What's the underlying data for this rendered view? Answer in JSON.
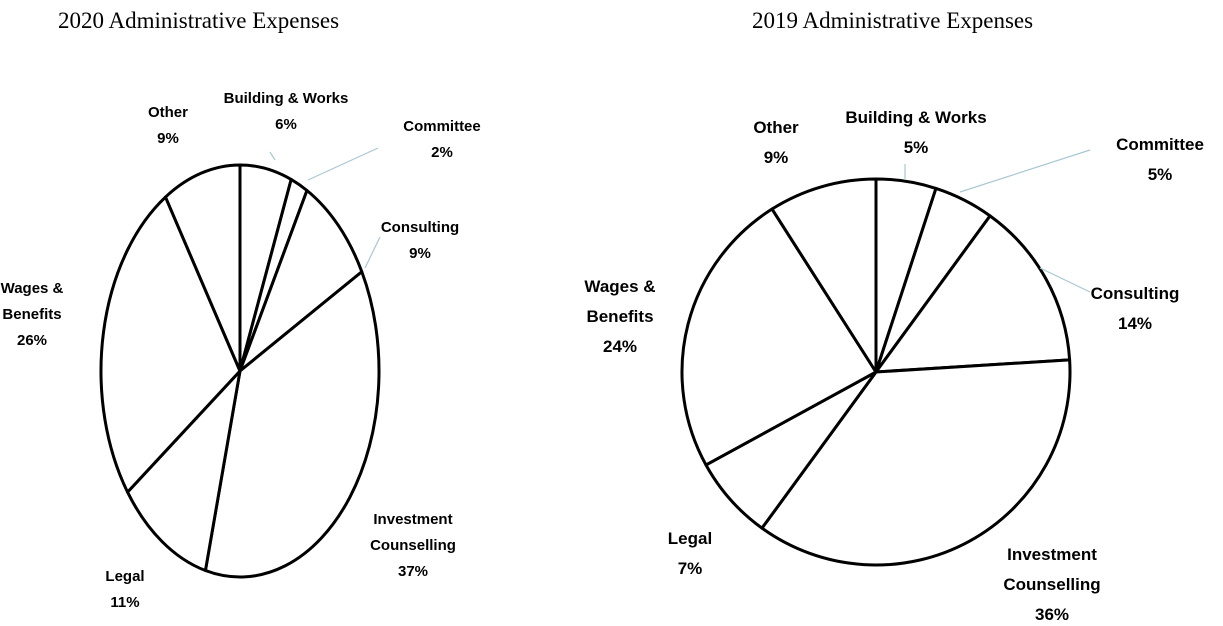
{
  "chart_data": [
    {
      "type": "pie",
      "title": "2020 Administrative Expenses",
      "categories": [
        "Building & Works",
        "Committee",
        "Consulting",
        "Investment Counselling",
        "Legal",
        "Wages & Benefits",
        "Other"
      ],
      "values": [
        6,
        2,
        9,
        37,
        11,
        26,
        9
      ],
      "value_labels": [
        "6%",
        "2%",
        "9%",
        "37%",
        "11%",
        "26%",
        "9%"
      ],
      "label_lines": [
        [
          "Building & Works",
          "6%"
        ],
        [
          "Committee",
          "2%"
        ],
        [
          "Consulting",
          "9%"
        ],
        [
          "Investment",
          "Counselling",
          "37%"
        ],
        [
          "Legal",
          "11%"
        ],
        [
          "Wages &",
          "Benefits",
          "26%"
        ],
        [
          "Other",
          "9%"
        ]
      ],
      "legend": "none"
    },
    {
      "type": "pie",
      "title": "2019 Administrative Expenses",
      "categories": [
        "Building & Works",
        "Committee",
        "Consulting",
        "Investment Counselling",
        "Legal",
        "Wages & Benefits",
        "Other"
      ],
      "values": [
        5,
        5,
        14,
        36,
        7,
        24,
        9
      ],
      "value_labels": [
        "5%",
        "5%",
        "14%",
        "36%",
        "7%",
        "24%",
        "9%"
      ],
      "label_lines": [
        [
          "Building & Works",
          "5%"
        ],
        [
          "Committee",
          "5%"
        ],
        [
          "Consulting",
          "14%"
        ],
        [
          "Investment",
          "Counselling",
          "36%"
        ],
        [
          "Legal",
          "7%"
        ],
        [
          "Wages &",
          "Benefits",
          "24%"
        ],
        [
          "Other",
          "9%"
        ]
      ],
      "legend": "none"
    }
  ]
}
